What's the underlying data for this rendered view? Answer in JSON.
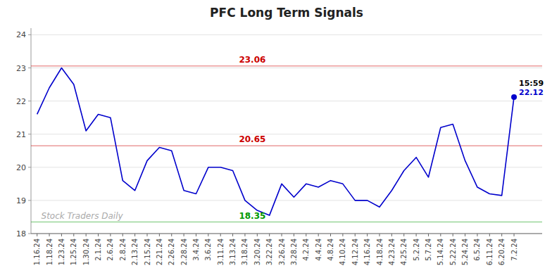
{
  "chart_data": {
    "type": "line",
    "title": "PFC Long Term Signals",
    "categories": [
      "1.16.24",
      "1.18.24",
      "1.23.24",
      "1.25.24",
      "1.30.24",
      "2.1.24",
      "2.6.24",
      "2.8.24",
      "2.13.24",
      "2.15.24",
      "2.21.24",
      "2.26.24",
      "2.28.24",
      "3.4.24",
      "3.6.24",
      "3.11.24",
      "3.13.24",
      "3.18.24",
      "3.20.24",
      "3.22.24",
      "3.26.24",
      "3.28.24",
      "4.2.24",
      "4.4.24",
      "4.8.24",
      "4.10.24",
      "4.12.24",
      "4.16.24",
      "4.18.24",
      "4.23.24",
      "4.25.24",
      "5.2.24",
      "5.7.24",
      "5.14.24",
      "5.22.24",
      "5.24.24",
      "6.5.24",
      "6.11.24",
      "6.20.24",
      "7.2.24"
    ],
    "values": [
      21.6,
      22.4,
      23.0,
      22.5,
      21.1,
      21.6,
      21.5,
      19.6,
      19.3,
      20.2,
      20.6,
      20.5,
      19.3,
      19.2,
      20.0,
      20.0,
      19.9,
      19.0,
      18.7,
      18.55,
      19.5,
      19.1,
      19.5,
      19.4,
      19.6,
      19.5,
      19.0,
      19.0,
      18.8,
      19.3,
      19.9,
      20.3,
      19.7,
      21.2,
      21.3,
      20.2,
      19.4,
      19.2,
      19.15,
      22.12
    ],
    "color": "#0000cc",
    "ylim": [
      18.0,
      24.2
    ],
    "yticks": [
      18,
      19,
      20,
      21,
      22,
      23,
      24
    ],
    "grid": true,
    "hlines": [
      {
        "value": 23.06,
        "color": "#cc0000"
      },
      {
        "value": 20.65,
        "color": "#cc0000"
      },
      {
        "value": 18.35,
        "color": "#009900"
      }
    ],
    "annotations": [
      "15:59",
      "Stock Traders Daily"
    ]
  }
}
